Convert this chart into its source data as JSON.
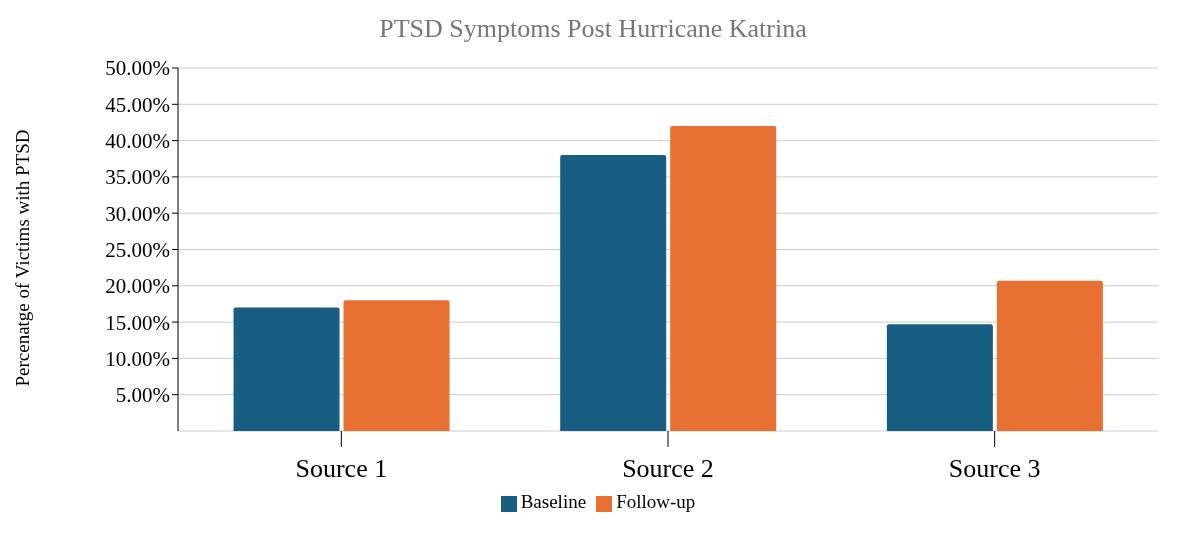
{
  "chart_data": {
    "type": "bar",
    "title": "PTSD Symptoms Post Hurricane Katrina",
    "ylabel": "Percenatge of Victims with PTSD",
    "categories": [
      "Source 1",
      "Source 2",
      "Source 3"
    ],
    "series": [
      {
        "name": "Baseline",
        "color": "#175e82",
        "values": [
          17,
          38,
          14.7
        ]
      },
      {
        "name": "Follow-up",
        "color": "#e87033",
        "values": [
          18,
          42,
          20.7
        ]
      }
    ],
    "ylim": [
      0,
      50
    ],
    "yticks": [
      {
        "value": 5,
        "label": "5.00%"
      },
      {
        "value": 10,
        "label": "10.00%"
      },
      {
        "value": 15,
        "label": "15.00%"
      },
      {
        "value": 20,
        "label": "20.00%"
      },
      {
        "value": 25,
        "label": "25.00%"
      },
      {
        "value": 30,
        "label": "30.00%"
      },
      {
        "value": 35,
        "label": "35.00%"
      },
      {
        "value": 40,
        "label": "40.00%"
      },
      {
        "value": 45,
        "label": "45.00%"
      },
      {
        "value": 50,
        "label": "50.00%"
      }
    ],
    "grid": "y",
    "legend": "bottom"
  }
}
